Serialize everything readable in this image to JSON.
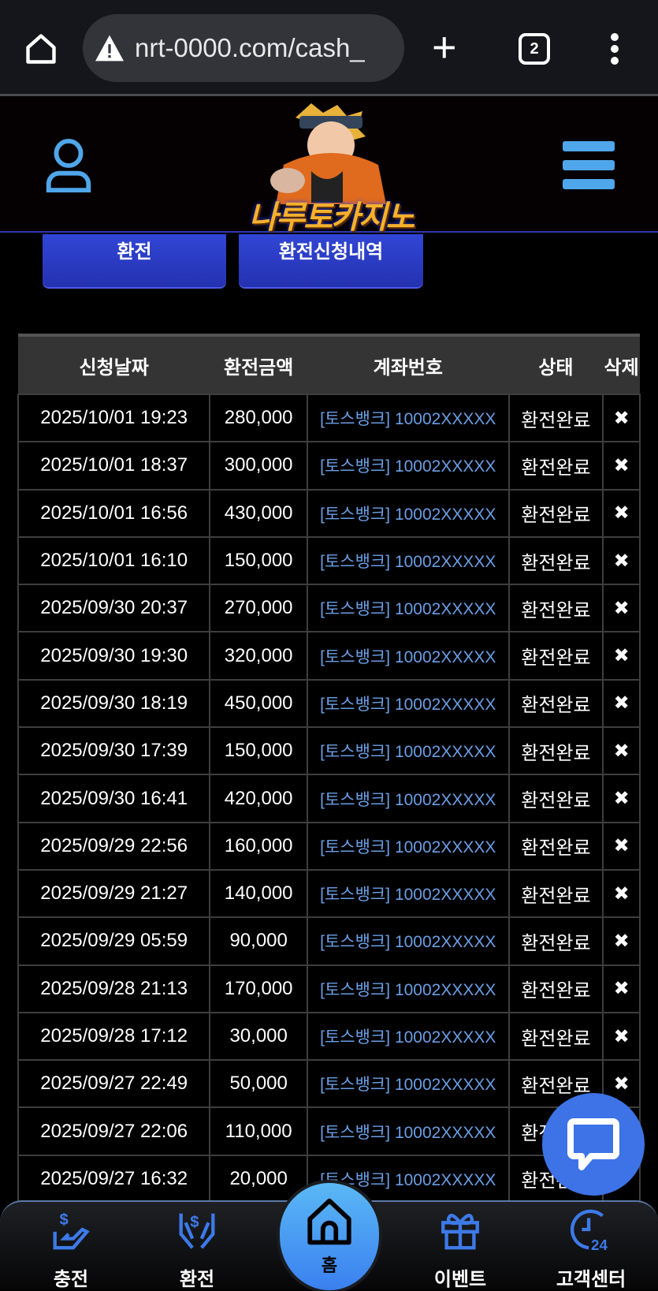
{
  "browser": {
    "url": "nrt-0000.com/cash_",
    "tab_count": "2"
  },
  "site": {
    "logo_text": "나루토카지노"
  },
  "buttons": {
    "withdraw": "환전",
    "history": "환전신청내역"
  },
  "table": {
    "headers": [
      "신청날짜",
      "환전금액",
      "계좌번호",
      "상태",
      "삭제"
    ],
    "rows": [
      {
        "date": "2025/10/01 19:23",
        "amount": "280,000",
        "account": "[토스뱅크] 10002XXXXX",
        "status": "환전완료",
        "delete": "✖"
      },
      {
        "date": "2025/10/01 18:37",
        "amount": "300,000",
        "account": "[토스뱅크] 10002XXXXX",
        "status": "환전완료",
        "delete": "✖"
      },
      {
        "date": "2025/10/01 16:56",
        "amount": "430,000",
        "account": "[토스뱅크] 10002XXXXX",
        "status": "환전완료",
        "delete": "✖"
      },
      {
        "date": "2025/10/01 16:10",
        "amount": "150,000",
        "account": "[토스뱅크] 10002XXXXX",
        "status": "환전완료",
        "delete": "✖"
      },
      {
        "date": "2025/09/30 20:37",
        "amount": "270,000",
        "account": "[토스뱅크] 10002XXXXX",
        "status": "환전완료",
        "delete": "✖"
      },
      {
        "date": "2025/09/30 19:30",
        "amount": "320,000",
        "account": "[토스뱅크] 10002XXXXX",
        "status": "환전완료",
        "delete": "✖"
      },
      {
        "date": "2025/09/30 18:19",
        "amount": "450,000",
        "account": "[토스뱅크] 10002XXXXX",
        "status": "환전완료",
        "delete": "✖"
      },
      {
        "date": "2025/09/30 17:39",
        "amount": "150,000",
        "account": "[토스뱅크] 10002XXXXX",
        "status": "환전완료",
        "delete": "✖"
      },
      {
        "date": "2025/09/30 16:41",
        "amount": "420,000",
        "account": "[토스뱅크] 10002XXXXX",
        "status": "환전완료",
        "delete": "✖"
      },
      {
        "date": "2025/09/29 22:56",
        "amount": "160,000",
        "account": "[토스뱅크] 10002XXXXX",
        "status": "환전완료",
        "delete": "✖"
      },
      {
        "date": "2025/09/29 21:27",
        "amount": "140,000",
        "account": "[토스뱅크] 10002XXXXX",
        "status": "환전완료",
        "delete": "✖"
      },
      {
        "date": "2025/09/29 05:59",
        "amount": "90,000",
        "account": "[토스뱅크] 10002XXXXX",
        "status": "환전완료",
        "delete": "✖"
      },
      {
        "date": "2025/09/28 21:13",
        "amount": "170,000",
        "account": "[토스뱅크] 10002XXXXX",
        "status": "환전완료",
        "delete": "✖"
      },
      {
        "date": "2025/09/28 17:12",
        "amount": "30,000",
        "account": "[토스뱅크] 10002XXXXX",
        "status": "환전완료",
        "delete": "✖"
      },
      {
        "date": "2025/09/27 22:49",
        "amount": "50,000",
        "account": "[토스뱅크] 10002XXXXX",
        "status": "환전완료",
        "delete": "✖"
      },
      {
        "date": "2025/09/27 22:06",
        "amount": "110,000",
        "account": "[토스뱅크] 10002XXXXX",
        "status": "환전완료",
        "delete": "✖"
      },
      {
        "date": "2025/09/27 16:32",
        "amount": "20,000",
        "account": "[토스뱅크] 10002XXXXX",
        "status": "환전완료",
        "delete": "✖"
      }
    ]
  },
  "bottom_nav": {
    "charge": "충전",
    "withdraw": "환전",
    "home": "홈",
    "event": "이벤트",
    "support": "고객센터"
  },
  "colors": {
    "accent": "#3d73e6",
    "icon_blue": "#4fa6ea",
    "button": "#2b3cc4"
  }
}
